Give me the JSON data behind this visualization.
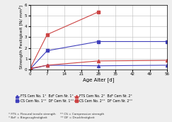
{
  "title": "",
  "ylabel": "Strength Festigkeit [N/ mm²]",
  "xlabel": "Age Alter [d]",
  "x_ticks": [
    0,
    7,
    14,
    21,
    28,
    35,
    42,
    49,
    56
  ],
  "ylim": [
    0,
    6
  ],
  "xlim": [
    0,
    56
  ],
  "series": {
    "FTS_No1": {
      "x": [
        0,
        7,
        28,
        56
      ],
      "y": [
        0.05,
        0.4,
        0.35,
        0.4
      ],
      "color": "#4040bb",
      "marker": "^",
      "markersize": 3.0,
      "linewidth": 0.8,
      "label": "FTS Cem No. 1°  BzF Cem Nr. 1°"
    },
    "FTS_No2": {
      "x": [
        0,
        7,
        28,
        56
      ],
      "y": [
        0.1,
        0.4,
        0.8,
        0.85
      ],
      "color": "#cc4444",
      "marker": "^",
      "markersize": 3.0,
      "linewidth": 0.8,
      "label": "FTS Cem No. 2°  BzF Cem Nr. 2°"
    },
    "CS_No1": {
      "x": [
        0,
        7,
        28,
        56
      ],
      "y": [
        0.05,
        1.75,
        2.6,
        2.6
      ],
      "color": "#4040bb",
      "marker": "s",
      "markersize": 3.5,
      "linewidth": 0.8,
      "label": "CS Cem No. 1°°  DF Cem Nr. 1°°"
    },
    "CS_No2": {
      "x": [
        0,
        7,
        28
      ],
      "y": [
        0.1,
        3.25,
        5.35
      ],
      "color": "#cc4444",
      "marker": "s",
      "markersize": 3.5,
      "linewidth": 0.8,
      "label": "CS Cem No. 2°°  DF Cem Nr. 2°°"
    }
  },
  "legend_labels": [
    "FTS Cem No. 1°  BzF Cem Nr. 1°",
    "CS Cem No. 1°°  DF Cem Nr. 1°°",
    "FTS Cem No. 2°  BzF Cem Nr. 2°",
    "CS Cem No. 2°°  DF Cem Nr. 2°°"
  ],
  "footnote_line1": "* FTS = Flexural tensile strength     ** CS = Compressive strength",
  "footnote_line2": "* BzF = Biegezugfestigkeit               ** DF = Druckfestigkeit",
  "bg_color": "#eeeeee",
  "plot_bg": "#ffffff",
  "grid_color": "#bbbbbb"
}
